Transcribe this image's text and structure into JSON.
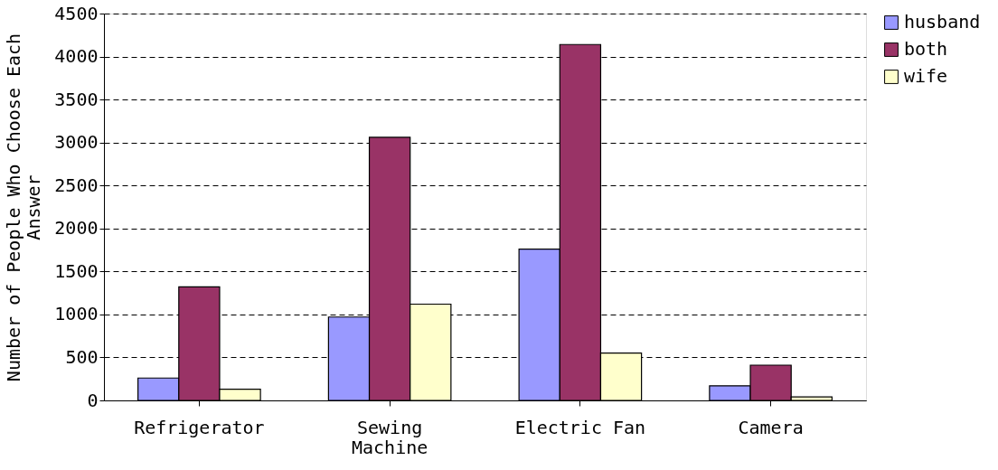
{
  "chart_data": {
    "type": "bar",
    "ylabel": "Number of People Who Choose Each Answer",
    "categories": [
      "Refrigerator",
      "Sewing Machine",
      "Electric Fan",
      "Camera"
    ],
    "series": [
      {
        "name": "husband",
        "color": "#9999ff",
        "values": [
          260,
          970,
          1760,
          170
        ]
      },
      {
        "name": "both",
        "color": "#993366",
        "values": [
          1320,
          3060,
          4140,
          410
        ]
      },
      {
        "name": "wife",
        "color": "#ffffcc",
        "values": [
          130,
          1120,
          550,
          40
        ]
      }
    ],
    "ylim": [
      0,
      4500
    ],
    "yticks": [
      0,
      500,
      1000,
      1500,
      2000,
      2500,
      3000,
      3500,
      4000,
      4500
    ],
    "grid": "y",
    "legend": "right"
  }
}
